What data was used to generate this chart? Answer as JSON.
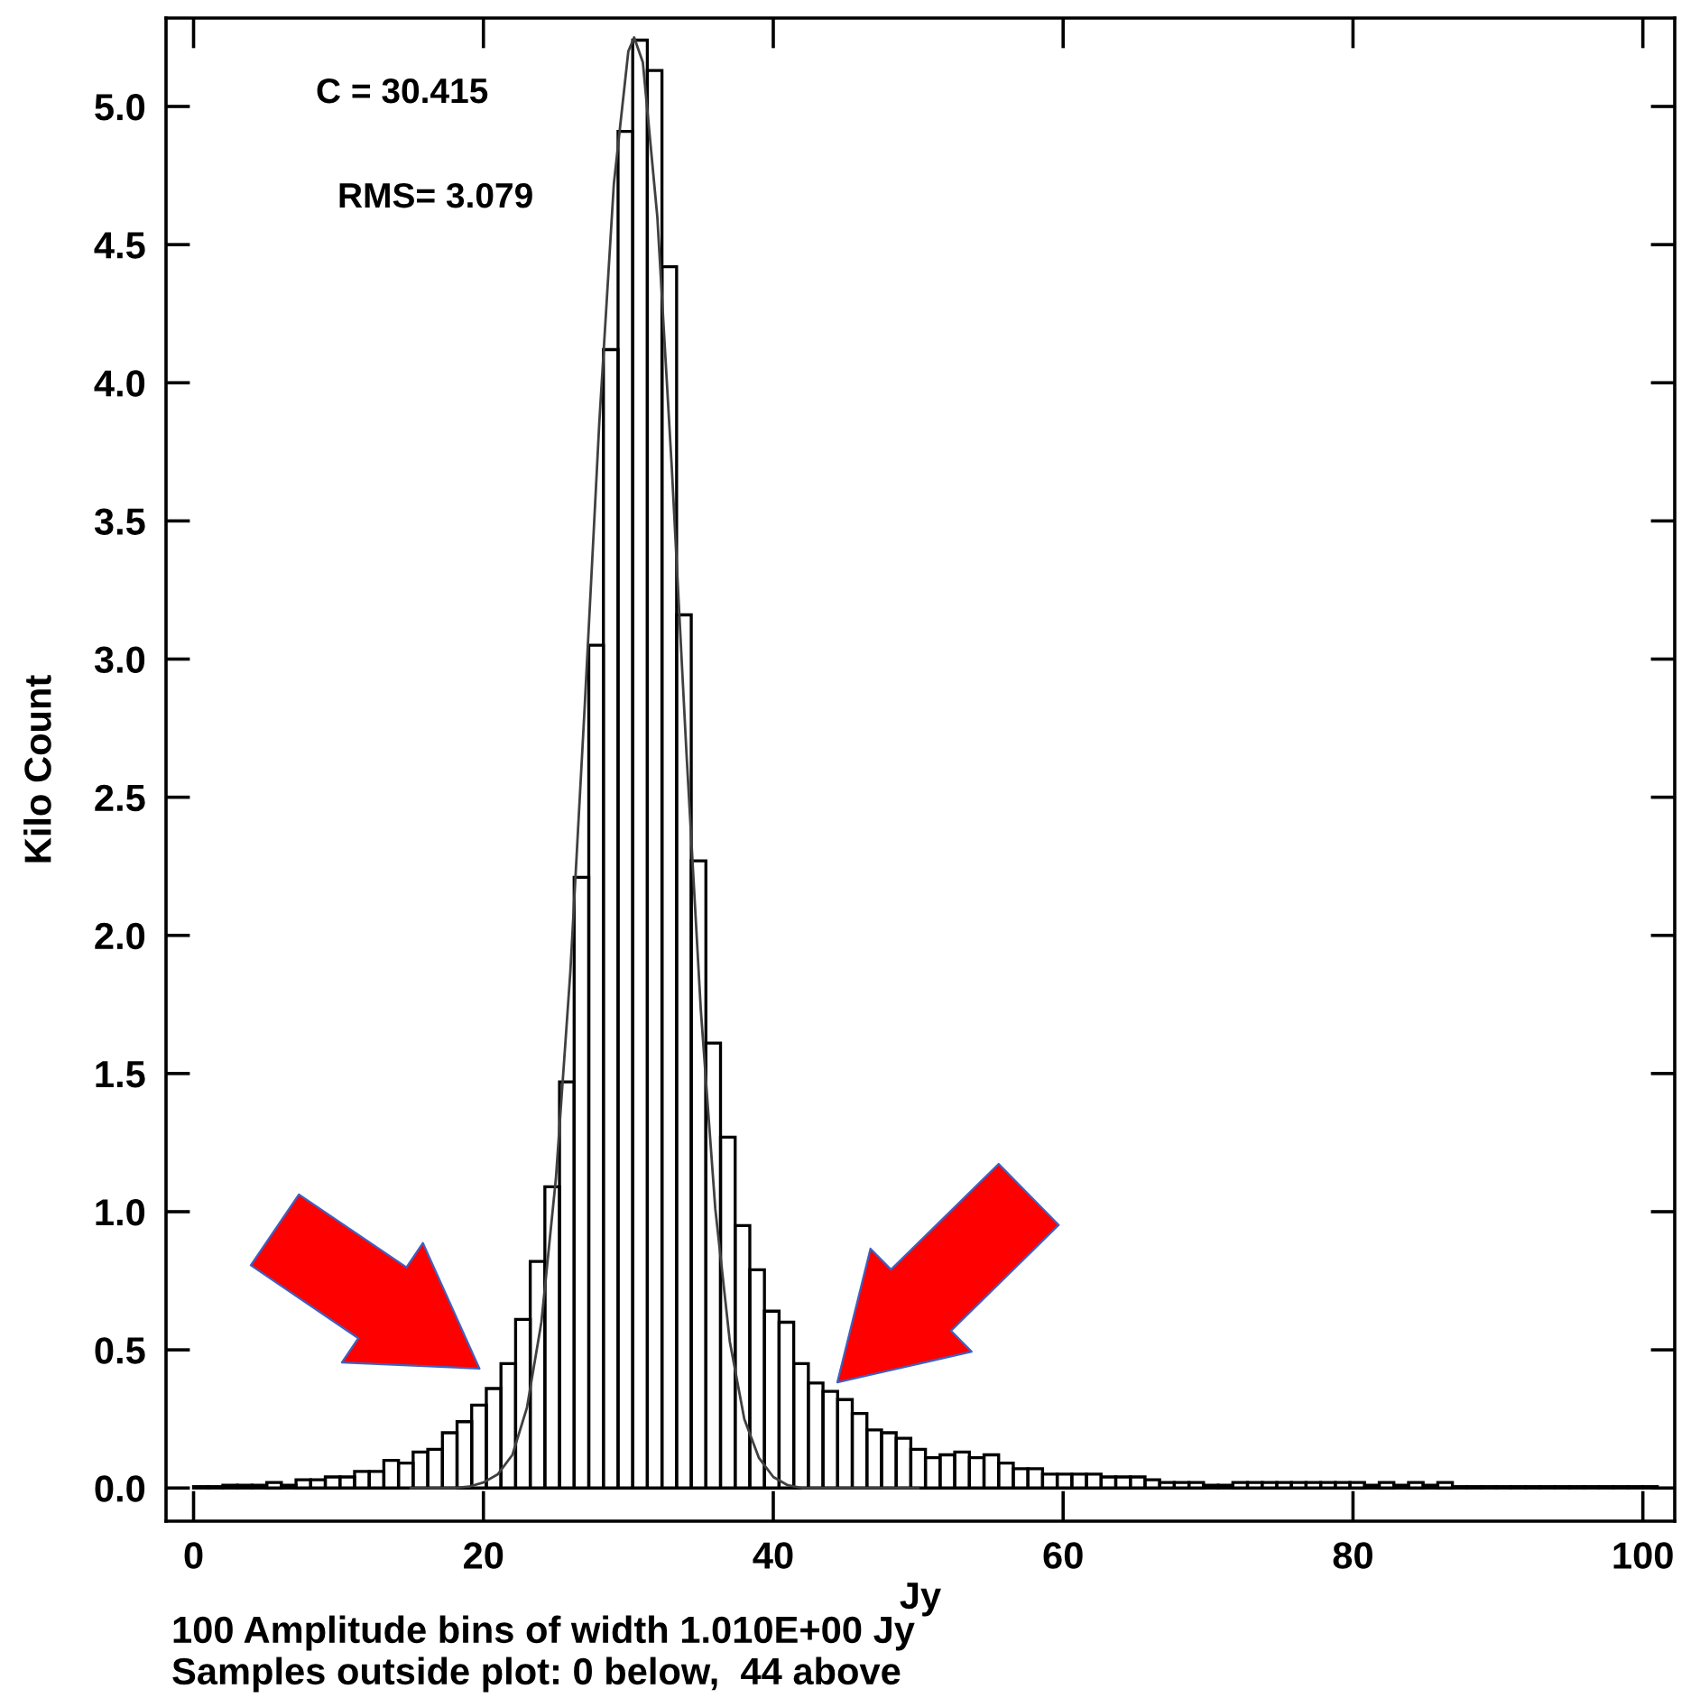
{
  "chart_data": {
    "type": "histogram",
    "xlabel": "Jy",
    "ylabel": "Kilo Count",
    "annotations": [
      "C = 30.415",
      "RMS= 3.079",
      "100 Amplitude bins of width 1.010E+00 Jy",
      "Samples outside plot: 0 below,  44 above"
    ],
    "bins": [
      0,
      1.01,
      2.02,
      3.03,
      4.04,
      5.05,
      6.06,
      7.07,
      8.08,
      9.09,
      10.1,
      11.11,
      12.12,
      13.13,
      14.14,
      15.15,
      16.16,
      17.17,
      18.18,
      19.19,
      20.2,
      21.21,
      22.22,
      23.23,
      24.24,
      25.25,
      26.26,
      27.27,
      28.28,
      29.29,
      30.3,
      31.31,
      32.32,
      33.33,
      34.34,
      35.35,
      36.36,
      37.37,
      38.38,
      39.39,
      40.4,
      41.41,
      42.42,
      43.43,
      44.44,
      45.45,
      46.46,
      47.47,
      48.48,
      49.49,
      50.5,
      51.51,
      52.52,
      53.53,
      54.54,
      55.55,
      56.56,
      57.57,
      58.58,
      59.59,
      60.6,
      61.61,
      62.62,
      63.63,
      64.64,
      65.65,
      66.66,
      67.67,
      68.68,
      69.69,
      70.7,
      71.71,
      72.72,
      73.73,
      74.74,
      75.75,
      76.76,
      77.77,
      78.78,
      79.79,
      80.8,
      81.81,
      82.82,
      83.83,
      84.84,
      85.85,
      86.86,
      87.87,
      88.88,
      89.89,
      90.9,
      91.91,
      92.92,
      93.93,
      94.94,
      95.95,
      96.96,
      97.97,
      98.98,
      99.99,
      101
    ],
    "series": [
      {
        "color": "#000000",
        "values": [
          0.005,
          0.005,
          0.01,
          0.01,
          0.01,
          0.02,
          0.01,
          0.03,
          0.03,
          0.04,
          0.04,
          0.06,
          0.06,
          0.1,
          0.09,
          0.13,
          0.14,
          0.2,
          0.24,
          0.3,
          0.36,
          0.45,
          0.61,
          0.82,
          1.09,
          1.47,
          2.21,
          3.05,
          4.12,
          4.91,
          5.24,
          5.13,
          4.42,
          3.16,
          2.27,
          1.61,
          1.27,
          0.95,
          0.79,
          0.64,
          0.6,
          0.45,
          0.38,
          0.35,
          0.32,
          0.27,
          0.21,
          0.2,
          0.18,
          0.14,
          0.11,
          0.12,
          0.13,
          0.11,
          0.12,
          0.09,
          0.07,
          0.07,
          0.05,
          0.05,
          0.05,
          0.05,
          0.04,
          0.04,
          0.04,
          0.03,
          0.02,
          0.02,
          0.02,
          0.01,
          0.01,
          0.02,
          0.02,
          0.02,
          0.02,
          0.02,
          0.02,
          0.02,
          0.02,
          0.02,
          0.01,
          0.02,
          0.01,
          0.02,
          0.01,
          0.02,
          0.005,
          0.005,
          0.005,
          0.005,
          0.005,
          0.005,
          0.005,
          0.005,
          0.005,
          0.005,
          0.005,
          0.005,
          0.005,
          0.005
        ]
      },
      {
        "type": "line",
        "color": "#404040",
        "x": [
          15,
          18,
          19,
          20,
          21,
          22,
          23,
          24,
          25,
          26,
          27,
          28,
          29,
          30,
          30.4,
          31,
          32,
          33,
          34,
          35,
          36,
          37,
          38,
          39,
          40,
          41,
          42,
          45,
          50
        ],
        "values": [
          0,
          0,
          0.005,
          0.02,
          0.05,
          0.12,
          0.29,
          0.6,
          1.12,
          1.87,
          2.84,
          3.86,
          4.72,
          5.2,
          5.25,
          5.16,
          4.6,
          3.69,
          2.67,
          1.73,
          1.01,
          0.53,
          0.25,
          0.11,
          0.04,
          0.01,
          0,
          0,
          0
        ]
      }
    ],
    "xlim": [
      -1.9,
      102.2
    ],
    "ylim": [
      -0.12,
      5.32
    ],
    "xticks": [
      0,
      20,
      40,
      60,
      80,
      100
    ],
    "yticks": [
      {
        "value": 0,
        "label": "0.0"
      },
      {
        "value": 0.5,
        "label": "0.5"
      },
      {
        "value": 1,
        "label": "1.0"
      },
      {
        "value": 1.5,
        "label": "1.5"
      },
      {
        "value": 2,
        "label": "2.0"
      },
      {
        "value": 2.5,
        "label": "2.5"
      },
      {
        "value": 3,
        "label": "3.0"
      },
      {
        "value": 3.5,
        "label": "3.5"
      },
      {
        "value": 4,
        "label": "4.0"
      },
      {
        "value": 4.5,
        "label": "4.5"
      },
      {
        "value": 5,
        "label": "5.0"
      }
    ],
    "grid": false,
    "legend": false
  }
}
